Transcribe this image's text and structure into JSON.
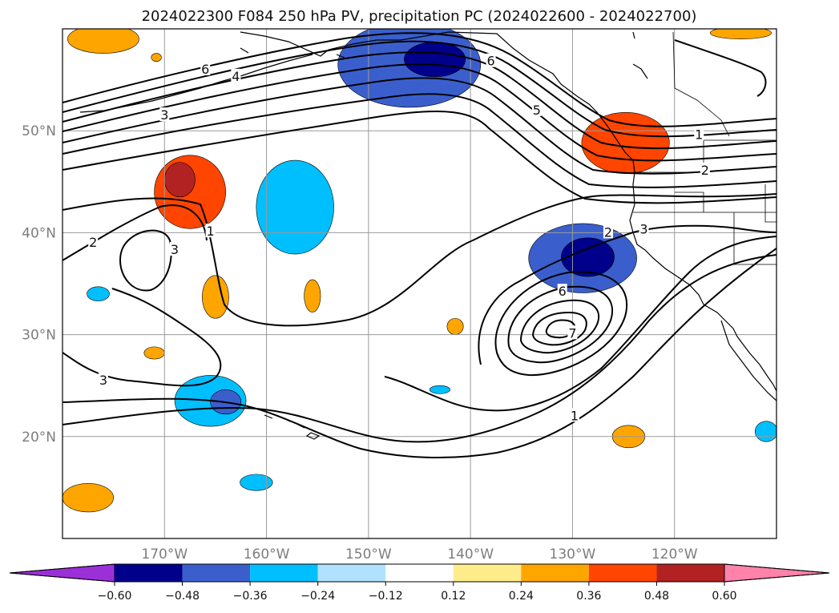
{
  "chart_data": {
    "type": "contour_map",
    "title": "2024022300 F084 250 hPa PV, precipitation PC (2024022600 - 2024022700)",
    "extent": {
      "lon": [
        -180,
        -110
      ],
      "lat": [
        10,
        60
      ]
    },
    "grid": true,
    "lat_ticks": [
      {
        "value": 20,
        "label": "20°N"
      },
      {
        "value": 30,
        "label": "30°N"
      },
      {
        "value": 40,
        "label": "40°N"
      },
      {
        "value": 50,
        "label": "50°N"
      }
    ],
    "lon_ticks": [
      {
        "value": -170,
        "label": "170°W"
      },
      {
        "value": -160,
        "label": "160°W"
      },
      {
        "value": -150,
        "label": "150°W"
      },
      {
        "value": -140,
        "label": "140°W"
      },
      {
        "value": -130,
        "label": "130°W"
      },
      {
        "value": -120,
        "label": "120°W"
      }
    ],
    "colorbar": {
      "boundaries": [
        -0.72,
        -0.6,
        -0.48,
        -0.36,
        -0.24,
        -0.12,
        0.12,
        0.24,
        0.36,
        0.48,
        0.6,
        0.72
      ],
      "tick_labels": [
        "−0.60",
        "−0.48",
        "−0.36",
        "−0.24",
        "−0.12",
        "0.12",
        "0.24",
        "0.36",
        "0.48",
        "0.60"
      ],
      "colors": [
        "#9b30d9",
        "#00008b",
        "#3a5fcd",
        "#00bfff",
        "#b0e2ff",
        "#ffffff",
        "#ffec8b",
        "#ffa500",
        "#ff4500",
        "#b22222",
        "#ff82ab"
      ],
      "extend": "both"
    },
    "pc_regions": [
      {
        "lon": -146,
        "lat": 56.5,
        "rx": 7.0,
        "ry": 4.2,
        "value": -0.42
      },
      {
        "lon": -143.5,
        "lat": 57.0,
        "rx": 3.0,
        "ry": 1.7,
        "value": -0.55
      },
      {
        "lon": -157.2,
        "lat": 42.5,
        "rx": 3.8,
        "ry": 4.6,
        "value": -0.32
      },
      {
        "lon": -129.0,
        "lat": 37.5,
        "rx": 5.3,
        "ry": 3.4,
        "value": -0.42
      },
      {
        "lon": -128.5,
        "lat": 37.6,
        "rx": 2.6,
        "ry": 1.9,
        "value": -0.55
      },
      {
        "lon": -165.5,
        "lat": 23.5,
        "rx": 3.5,
        "ry": 2.5,
        "value": -0.32
      },
      {
        "lon": -164.0,
        "lat": 23.4,
        "rx": 1.5,
        "ry": 1.2,
        "value": -0.4
      },
      {
        "lon": -176.5,
        "lat": 34.0,
        "rx": 1.1,
        "ry": 0.7,
        "value": -0.28
      },
      {
        "lon": -161.0,
        "lat": 15.5,
        "rx": 1.6,
        "ry": 0.8,
        "value": -0.28
      },
      {
        "lon": -143.0,
        "lat": 24.6,
        "rx": 1.0,
        "ry": 0.4,
        "value": -0.26
      },
      {
        "lon": -111.0,
        "lat": 20.5,
        "rx": 1.1,
        "ry": 1.0,
        "value": -0.28
      },
      {
        "lon": -167.5,
        "lat": 44.0,
        "rx": 3.5,
        "ry": 3.6,
        "value": 0.4
      },
      {
        "lon": -168.5,
        "lat": 45.2,
        "rx": 1.5,
        "ry": 1.7,
        "value": 0.5
      },
      {
        "lon": -124.8,
        "lat": 48.8,
        "rx": 4.3,
        "ry": 3.0,
        "value": 0.4
      },
      {
        "lon": -165.0,
        "lat": 33.7,
        "rx": 1.3,
        "ry": 2.1,
        "value": 0.3
      },
      {
        "lon": -155.5,
        "lat": 33.8,
        "rx": 0.8,
        "ry": 1.6,
        "value": 0.28
      },
      {
        "lon": -141.5,
        "lat": 30.8,
        "rx": 0.8,
        "ry": 0.8,
        "value": 0.28
      },
      {
        "lon": -124.5,
        "lat": 20.0,
        "rx": 1.6,
        "ry": 1.1,
        "value": 0.28
      },
      {
        "lon": -177.5,
        "lat": 14.0,
        "rx": 2.5,
        "ry": 1.4,
        "value": 0.32
      },
      {
        "lon": -171.0,
        "lat": 28.2,
        "rx": 1.0,
        "ry": 0.6,
        "value": 0.26
      },
      {
        "lon": -176.0,
        "lat": 59.0,
        "rx": 3.5,
        "ry": 1.4,
        "value": 0.28
      },
      {
        "lon": -113.5,
        "lat": 59.6,
        "rx": 3.0,
        "ry": 0.6,
        "value": 0.26
      },
      {
        "lon": -170.8,
        "lat": 57.2,
        "rx": 0.5,
        "ry": 0.4,
        "value": 0.3
      }
    ],
    "pv_contour_labels": [
      {
        "text": "6",
        "lon": -166,
        "lat": 56.0
      },
      {
        "text": "4",
        "lon": -163,
        "lat": 55.3
      },
      {
        "text": "3",
        "lon": -170,
        "lat": 51.5
      },
      {
        "text": "6",
        "lon": -138,
        "lat": 56.8
      },
      {
        "text": "5",
        "lon": -133.5,
        "lat": 52.0
      },
      {
        "text": "1",
        "lon": -117.6,
        "lat": 49.6
      },
      {
        "text": "2",
        "lon": -117.0,
        "lat": 46.1
      },
      {
        "text": "1",
        "lon": -165.5,
        "lat": 40.1
      },
      {
        "text": "2",
        "lon": -177.0,
        "lat": 39.0
      },
      {
        "text": "3",
        "lon": -169.0,
        "lat": 38.3
      },
      {
        "text": "2",
        "lon": -126.5,
        "lat": 40.0
      },
      {
        "text": "3",
        "lon": -123.0,
        "lat": 40.3
      },
      {
        "text": "6",
        "lon": -131.0,
        "lat": 34.2
      },
      {
        "text": "7",
        "lon": -130.0,
        "lat": 30.1
      },
      {
        "text": "3",
        "lon": -176.0,
        "lat": 25.5
      },
      {
        "text": "1",
        "lon": -129.8,
        "lat": 22.0
      }
    ]
  }
}
